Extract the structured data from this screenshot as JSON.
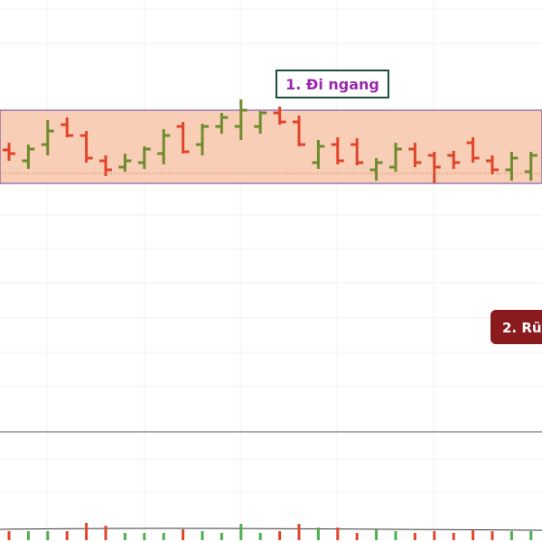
{
  "chart_data": {
    "type": "ohlc",
    "ylim": [
      0,
      600
    ],
    "open": [
      434,
      422,
      440,
      462,
      450,
      422,
      415,
      420,
      430,
      460,
      440,
      460,
      460,
      460,
      475,
      465,
      420,
      440,
      440,
      412,
      415,
      435,
      428,
      428,
      442,
      422,
      412,
      410
    ],
    "high": [
      442,
      440,
      467,
      470,
      455,
      428,
      430,
      438,
      457,
      465,
      463,
      475,
      490,
      477,
      482,
      472,
      445,
      448,
      447,
      425,
      442,
      442,
      432,
      433,
      448,
      428,
      432,
      432
    ],
    "low": [
      422,
      413,
      428,
      448,
      420,
      405,
      410,
      413,
      418,
      430,
      428,
      452,
      445,
      452,
      462,
      438,
      413,
      418,
      417,
      400,
      410,
      415,
      397,
      413,
      420,
      407,
      400,
      400
    ],
    "close": [
      430,
      435,
      455,
      450,
      425,
      412,
      422,
      435,
      450,
      432,
      460,
      470,
      478,
      475,
      465,
      440,
      438,
      422,
      420,
      420,
      435,
      420,
      415,
      420,
      425,
      412,
      425,
      428
    ],
    "volume": [
      10,
      10,
      10,
      10,
      19,
      16,
      8,
      8,
      8,
      12,
      10,
      8,
      18,
      8,
      10,
      18,
      14,
      14,
      8,
      12,
      10,
      8,
      10,
      8,
      12,
      10,
      10,
      10
    ],
    "volume_lim": [
      0,
      60
    ],
    "up_color": "#6e8b2d",
    "down_color": "#e0452a",
    "range": {
      "top": 478,
      "bottom": 397,
      "mid": 408,
      "color": "#f8c9ae"
    },
    "annotations": [
      "1. Đi ngang",
      "2. Rũ"
    ]
  }
}
